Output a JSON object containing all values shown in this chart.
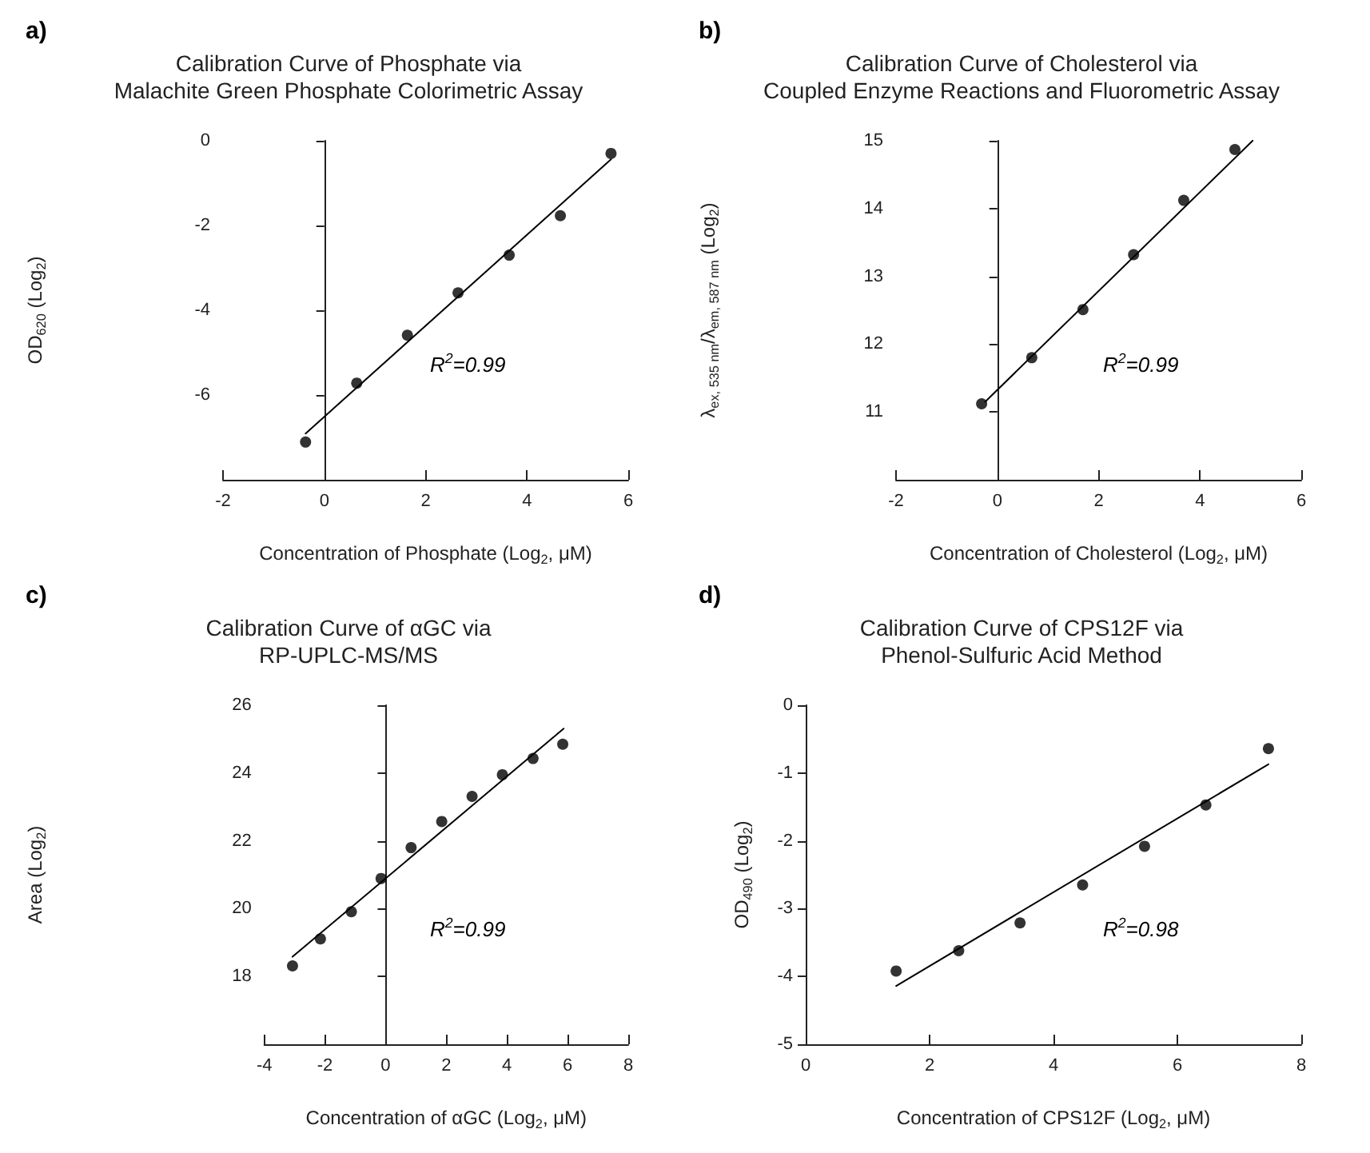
{
  "chart_data": [
    {
      "type": "scatter",
      "title": "Calibration Curve of Phosphate via\nMalachite Green Phosphate Colorimetric Assay",
      "xlabel": "Concentration of Phosphate (Log$_{2}$, μM)",
      "ylabel": "OD$_{620}$ (Log$_{2}$)",
      "annotations": [
        "a)",
        "R$^{2}$=0.99"
      ],
      "xlim": [
        -2,
        6
      ],
      "xticks": [
        -2,
        0,
        2,
        4,
        6
      ],
      "ylim": [
        -8,
        0
      ],
      "yticks": [
        -6,
        -4,
        -2,
        0
      ],
      "marker": "circle",
      "series": [
        {
          "type": "line",
          "marker": "none",
          "color": "#000000",
          "x": [
            -0.37,
            5.66
          ],
          "values": [
            -6.91,
            -0.44
          ]
        },
        {
          "color": "#000000",
          "x": [
            -0.37,
            0.64,
            1.64,
            2.64,
            3.65,
            4.66,
            5.66
          ],
          "values": [
            -7.11,
            -5.72,
            -4.59,
            -3.59,
            -2.7,
            -1.77,
            -0.3
          ]
        }
      ]
    },
    {
      "type": "scatter",
      "title": "Calibration Curve of Cholesterol via\nCoupled Enzyme Reactions and Fluorometric Assay",
      "xlabel": "Concentration of Cholesterol (Log$_{2}$, μM)",
      "ylabel": "λ$_{ex, 535 nm}$/λ$_{em, 587 nm}$ (Log$_{2}$)",
      "annotations": [
        "b)",
        "R$^{2}$=0.99"
      ],
      "xlim": [
        -2,
        6
      ],
      "xticks": [
        -2,
        0,
        2,
        4,
        6
      ],
      "ylim": [
        10,
        15
      ],
      "yticks": [
        11,
        12,
        13,
        14,
        15
      ],
      "marker": "circle",
      "series": [
        {
          "type": "line",
          "marker": "none",
          "color": "#000000",
          "x": [
            -0.24,
            5.04
          ],
          "values": [
            11.15,
            15.0
          ]
        },
        {
          "color": "#000000",
          "x": [
            -0.31,
            0.68,
            1.69,
            2.69,
            3.68,
            4.69
          ],
          "values": [
            11.12,
            11.8,
            12.51,
            13.32,
            14.12,
            14.87
          ]
        }
      ]
    },
    {
      "type": "scatter",
      "title": "Calibration Curve of αGC via\nRP-UPLC-MS/MS",
      "xlabel": "Concentration of αGC (Log$_{2}$, μM)",
      "ylabel": "Area (Log$_{2}$)",
      "annotations": [
        "c)",
        "R$^{2}$=0.99"
      ],
      "xlim": [
        -4,
        8
      ],
      "xticks": [
        -4,
        -2,
        0,
        2,
        4,
        6,
        8
      ],
      "ylim": [
        16,
        26
      ],
      "yticks": [
        18,
        20,
        22,
        24,
        26
      ],
      "marker": "circle",
      "series": [
        {
          "type": "line",
          "marker": "none",
          "color": "#000000",
          "x": [
            -3.07,
            5.87
          ],
          "values": [
            18.58,
            25.31
          ]
        },
        {
          "color": "#000000",
          "x": [
            -3.07,
            -2.15,
            -1.13,
            -0.15,
            0.84,
            1.85,
            2.85,
            3.85,
            4.86,
            5.84
          ],
          "values": [
            18.31,
            19.11,
            19.91,
            20.89,
            21.8,
            22.57,
            23.31,
            23.95,
            24.43,
            24.85
          ]
        }
      ]
    },
    {
      "type": "scatter",
      "title": "Calibration Curve of CPS12F via\nPhenol-Sulfuric Acid Method",
      "xlabel": "Concentration of CPS12F (Log$_{2}$, μM)",
      "ylabel": "OD$_{490}$ (Log$_{2}$)",
      "annotations": [
        "d)",
        "R$^{2}$=0.98"
      ],
      "xlim": [
        0,
        8
      ],
      "xticks": [
        0,
        2,
        4,
        6,
        8
      ],
      "ylim": [
        -5,
        0
      ],
      "yticks": [
        -5,
        -4,
        -3,
        -2,
        -1,
        0
      ],
      "marker": "circle",
      "series": [
        {
          "type": "line",
          "marker": "none",
          "color": "#000000",
          "x": [
            1.46,
            7.47
          ],
          "values": [
            -4.14,
            -0.87
          ]
        },
        {
          "color": "#000000",
          "x": [
            1.46,
            2.47,
            3.46,
            4.47,
            5.47,
            6.46,
            7.47
          ],
          "values": [
            -3.92,
            -3.62,
            -3.21,
            -2.65,
            -2.08,
            -1.47,
            -0.64
          ]
        }
      ]
    }
  ]
}
